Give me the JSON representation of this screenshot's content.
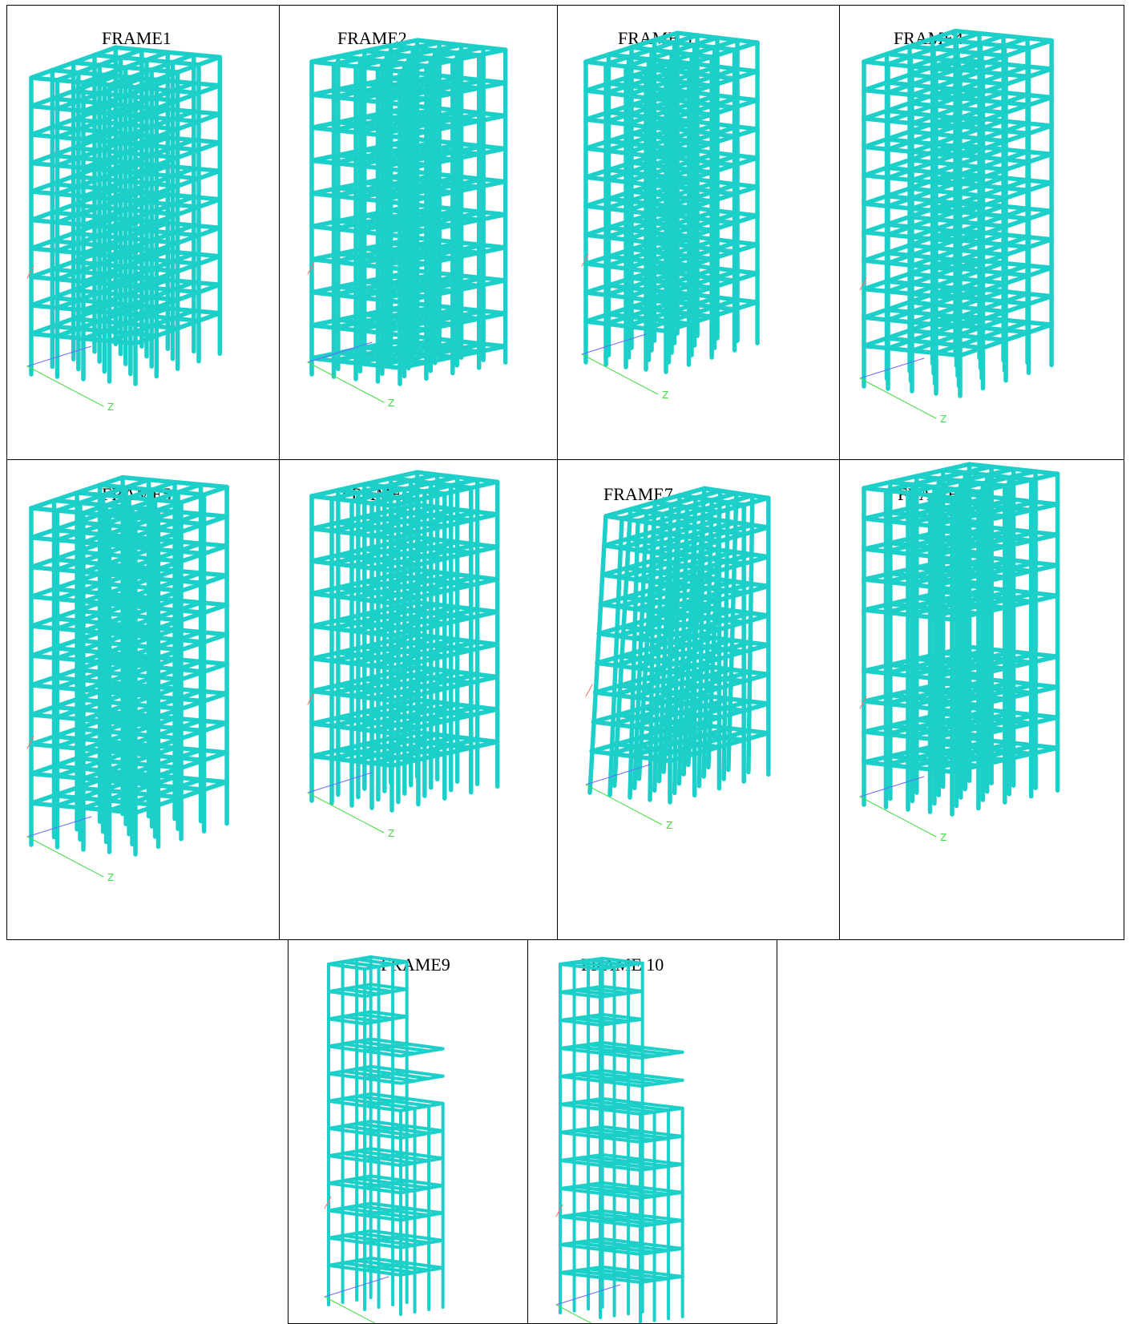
{
  "panels": [
    {
      "label": "FRAME1",
      "stories": 10,
      "setback": "none"
    },
    {
      "label": "FRAME2",
      "stories": 10,
      "setback": "soft-ground"
    },
    {
      "label": "FRAME 3",
      "stories": 10,
      "setback": "mid-gap"
    },
    {
      "label": "FRAME4",
      "stories": 10,
      "setback": "none"
    },
    {
      "label": "FRAME5",
      "stories": 10,
      "setback": "none"
    },
    {
      "label": "FRAME6",
      "stories": 10,
      "setback": "soft-ground"
    },
    {
      "label": "FRAME7",
      "stories": 10,
      "setback": "tilted"
    },
    {
      "label": "FRAME 8",
      "stories": 10,
      "setback": "mid-gap"
    },
    {
      "label": "FRAME9",
      "stories": 10,
      "setback": "stepped"
    },
    {
      "label": "FRAME 10",
      "stories": 10,
      "setback": "stepped"
    }
  ],
  "colors": {
    "member": "#1ccfc9",
    "member_dark": "#0e8f8a",
    "axis_x": "#ff6a6a",
    "axis_y": "#6a6aff",
    "axis_z": "#44dd44",
    "border": "#000000"
  },
  "axis_glyph": "Z"
}
